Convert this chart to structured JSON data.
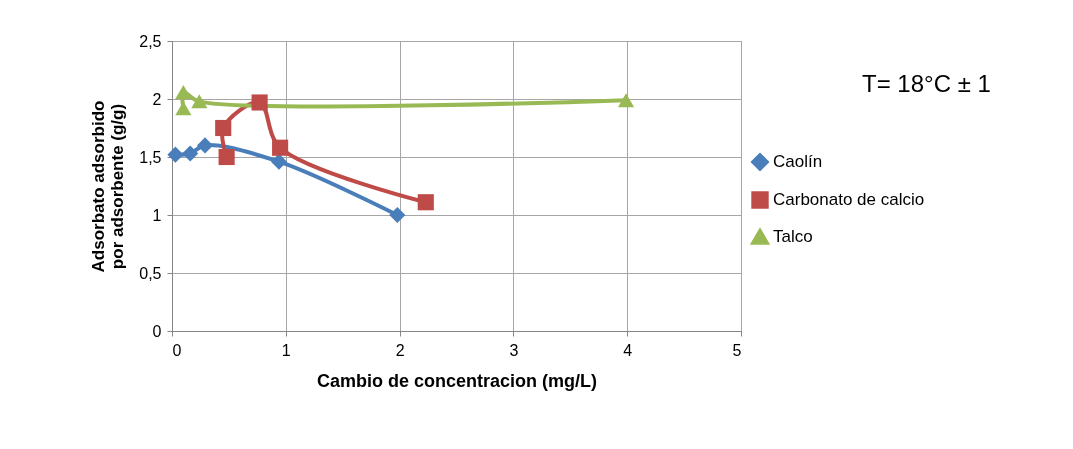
{
  "chart_data": {
    "type": "line",
    "xlabel": "Cambio de concentracion (mg/L)",
    "ylabel": "Adsorbato adsorbido por adsorbente (g/g)",
    "annotations": [
      "T= 18°C ± 1"
    ],
    "series": [
      {
        "name": "Caolín",
        "color": "#4a7ebb",
        "marker": "diamond",
        "x": [
          0.03,
          0.16,
          0.29,
          0.94,
          1.98
        ],
        "values": [
          1.52,
          1.53,
          1.6,
          1.46,
          1.0
        ]
      },
      {
        "name": "Carbonato de calcio",
        "color": "#be4b48",
        "marker": "square",
        "x": [
          0.48,
          0.45,
          0.77,
          0.95,
          2.23
        ],
        "values": [
          1.5,
          1.75,
          1.97,
          1.58,
          1.11
        ]
      },
      {
        "name": "Talco",
        "color": "#98b954",
        "marker": "triangle",
        "x": [
          0.1,
          0.1,
          0.24,
          3.99
        ],
        "values": [
          1.92,
          2.06,
          1.98,
          1.99
        ]
      }
    ],
    "xlim": [
      0,
      5
    ],
    "xticks": [
      0,
      1,
      2,
      3,
      4,
      5
    ],
    "ylim": [
      0,
      2.5
    ],
    "yticks": [
      0,
      {
        "value": 0.5,
        "label": "0,5"
      },
      1,
      {
        "value": 1.5,
        "label": "1,5"
      },
      2,
      {
        "value": 2.5,
        "label": "2,5"
      }
    ],
    "grid": true,
    "legend": "right",
    "line_style": "solid"
  }
}
